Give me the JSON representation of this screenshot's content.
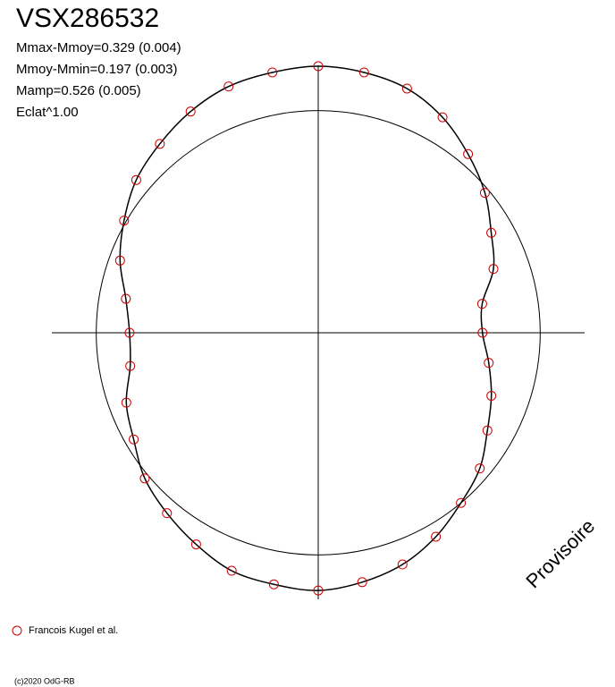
{
  "chart_data": {
    "type": "polar",
    "title": "VSX286532",
    "annotations": [
      "Mmax-Mmoy=0.329 (0.004)",
      "Mmoy-Mmin=0.197 (0.003)",
      "Mamp=0.526 (0.005)",
      "Eclat^1.00"
    ],
    "watermark": "Provisoire",
    "footer": "(c)2020 OdG-RB",
    "theta": [
      0,
      10,
      20,
      30,
      40,
      50,
      60,
      70,
      80,
      90,
      100,
      110,
      120,
      130,
      140,
      150,
      160,
      170,
      180,
      190,
      200,
      210,
      220,
      230,
      240,
      250,
      260,
      270,
      280,
      290,
      300,
      310,
      320,
      330,
      340,
      350
    ],
    "series": [
      {
        "name": "Francois Kugel et al.",
        "color": "#cc0000",
        "values": [
          1.2,
          1.19,
          1.17,
          1.12,
          1.05,
          0.98,
          0.9,
          0.84,
          0.75,
          0.74,
          0.78,
          0.83,
          0.88,
          0.95,
          1.0,
          1.06,
          1.11,
          1.14,
          1.16,
          1.15,
          1.14,
          1.1,
          1.06,
          1.02,
          0.96,
          0.92,
          0.86,
          0.85,
          0.88,
          0.95,
          1.01,
          1.07,
          1.11,
          1.15,
          1.18,
          1.19
        ]
      }
    ],
    "rlim": [
      0,
      1.2
    ],
    "reference_circle": 1,
    "fit_color": "#000000"
  }
}
